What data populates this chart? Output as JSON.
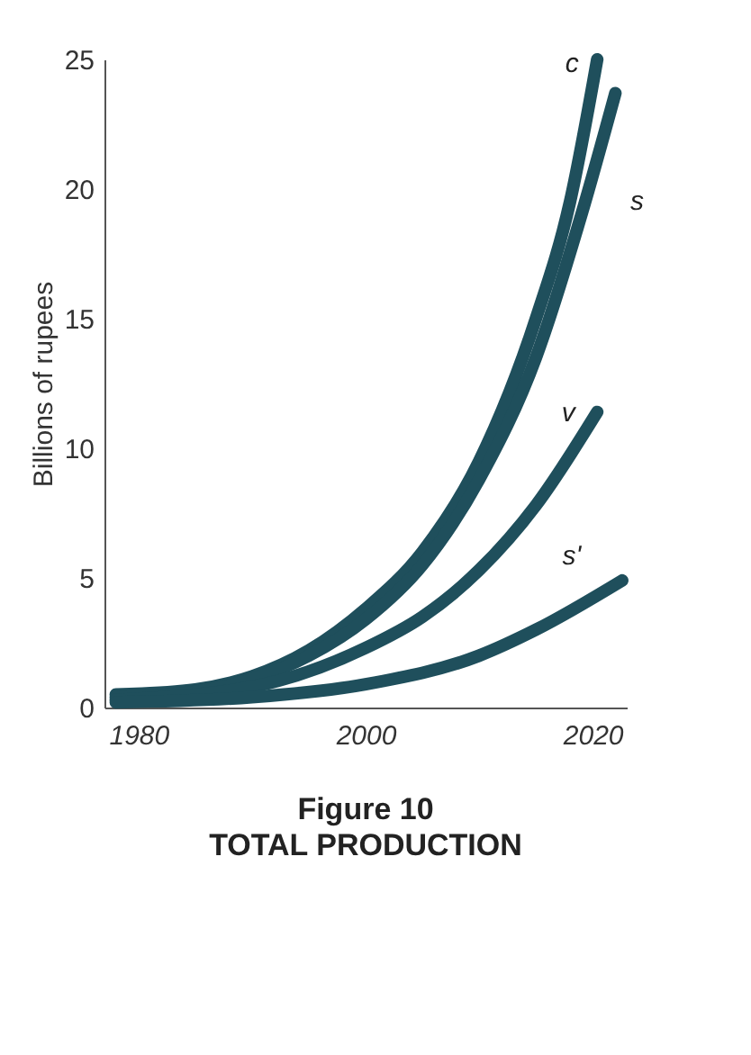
{
  "chart_data": {
    "type": "line",
    "ylabel": "Billions of rupees",
    "title": "Figure 10",
    "subtitle": "TOTAL PRODUCTION",
    "xlim": [
      1977,
      2023
    ],
    "xticks": [
      1980,
      2000,
      2020
    ],
    "ylim": [
      0,
      25
    ],
    "yticks": [
      0,
      5,
      10,
      15,
      20,
      25
    ],
    "grid": false,
    "legend": false,
    "line_style": "solid",
    "series": [
      {
        "name": "c",
        "color": "#1f4f5c",
        "x": [
          1978,
          1985,
          1990,
          1995,
          2000,
          2005,
          2010,
          2015,
          2018,
          2020.4
        ],
        "values": [
          0.5,
          0.7,
          1.2,
          2.2,
          3.8,
          6,
          9.5,
          15,
          19.5,
          25
        ]
      },
      {
        "name": "s",
        "color": "#1f4f5c",
        "x": [
          1978,
          1985,
          1990,
          1995,
          2000,
          2005,
          2010,
          2015,
          2019,
          2022
        ],
        "values": [
          0.4,
          0.6,
          1.1,
          2,
          3.4,
          5.5,
          8.8,
          13.5,
          19,
          23.7
        ]
      },
      {
        "name": "v",
        "color": "#1f4f5c",
        "x": [
          1978,
          1990,
          2000,
          2005,
          2010,
          2015,
          2020.4
        ],
        "values": [
          0.3,
          0.8,
          2.3,
          3.5,
          5.3,
          7.8,
          11.4
        ]
      },
      {
        "name": "s'",
        "color": "#1f4f5c",
        "x": [
          1978,
          1990,
          2000,
          2010,
          2015,
          2022.6
        ],
        "values": [
          0.2,
          0.4,
          0.9,
          2,
          3,
          4.9
        ]
      }
    ]
  }
}
